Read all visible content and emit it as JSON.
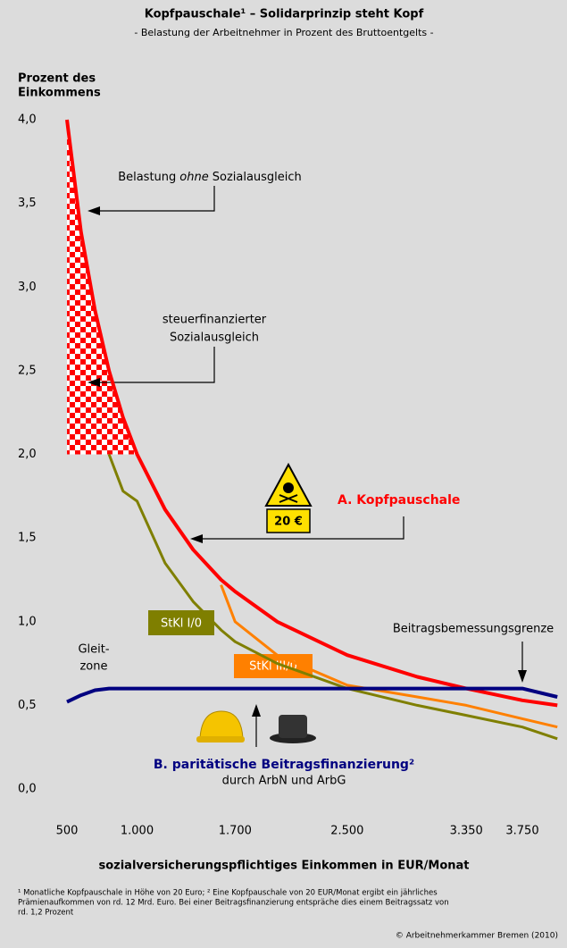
{
  "chart_data": {
    "type": "line",
    "title": "Kopfpauschale¹ – Solidarprinzip steht Kopf",
    "subtitle": "- Belastung der Arbeitnehmer in Prozent des Bruttoentgelts -",
    "y_title": [
      "Prozent des",
      "Einkommens"
    ],
    "x_title": "sozialversicherungspflichtiges Einkommen in EUR/Monat",
    "x": [
      500,
      600,
      700,
      800,
      900,
      1000,
      1200,
      1400,
      1600,
      1700,
      2000,
      2500,
      3000,
      3350,
      3750,
      4000
    ],
    "xlim": [
      436,
      4005
    ],
    "ylim": [
      0,
      4
    ],
    "xticks": [
      500,
      {
        "value": 1000,
        "label": "1.000"
      },
      {
        "value": 1700,
        "label": "1.700"
      },
      {
        "value": 2500,
        "label": "2.500"
      },
      {
        "value": 3350,
        "label": "3.350"
      },
      {
        "value": 3750,
        "label": "3.750"
      }
    ],
    "yticks": [
      {
        "value": 0,
        "label": "0,0"
      },
      {
        "value": 0.5,
        "label": "0,5"
      },
      {
        "value": 1,
        "label": "1,0"
      },
      {
        "value": 1.5,
        "label": "1,5"
      },
      {
        "value": 2,
        "label": "2,0"
      },
      {
        "value": 2.5,
        "label": "2,5"
      },
      {
        "value": 3,
        "label": "3,0"
      },
      {
        "value": 3.5,
        "label": "3,5"
      },
      {
        "value": 4,
        "label": "4,0"
      }
    ],
    "series": [
      {
        "name": "A. Kopfpauschale",
        "color": "#ff0000",
        "values": [
          4.0,
          3.33,
          2.86,
          2.5,
          2.22,
          2.0,
          1.67,
          1.43,
          1.25,
          1.18,
          1.0,
          0.8,
          0.67,
          0.6,
          0.53,
          0.5
        ]
      },
      {
        "name": "StKl I/0",
        "color": "#7f7f00",
        "values": [
          null,
          null,
          null,
          2.0,
          1.78,
          1.72,
          1.35,
          1.12,
          0.95,
          0.88,
          0.75,
          0.6,
          0.5,
          0.44,
          0.37,
          0.3
        ]
      },
      {
        "name": "StKl III/0",
        "color": "#ff8000",
        "values": [
          null,
          null,
          null,
          null,
          null,
          null,
          null,
          null,
          1.22,
          1.0,
          0.8,
          0.62,
          0.55,
          0.5,
          0.42,
          0.37
        ]
      },
      {
        "name": "B. paritätische Beitragsfinanzierung²",
        "color": "#000080",
        "values": [
          0.52,
          0.56,
          0.59,
          0.6,
          0.6,
          0.6,
          0.6,
          0.6,
          0.6,
          0.6,
          0.6,
          0.6,
          0.6,
          0.6,
          0.6,
          0.55
        ]
      }
    ],
    "annotations": {
      "no_relief": [
        "Belastung",
        "ohne",
        "Sozialausgleich"
      ],
      "tax_relief": [
        "steuerfinanzierter",
        "Sozialausgleich"
      ],
      "premium": "20 €",
      "sliding_zone": [
        "Gleit-",
        "zone"
      ],
      "ceiling": "Beitragsbemessungsgrenze",
      "parity": "durch ArbN und ArbG"
    },
    "footnote": [
      "¹ Monatliche Kopfpauschale in Höhe von 20 Euro; ² Eine Kopfpauschale von 20 EUR/Monat ergibt ein jährliches",
      "Prämienaufkommen von rd. 12 Mrd. Euro. Bei einer Beitragsfinanzierung entspräche dies einem Beitragssatz von",
      "rd. 1,2 Prozent"
    ],
    "source": "© Arbeitnehmerkammer Bremen (2010)"
  }
}
